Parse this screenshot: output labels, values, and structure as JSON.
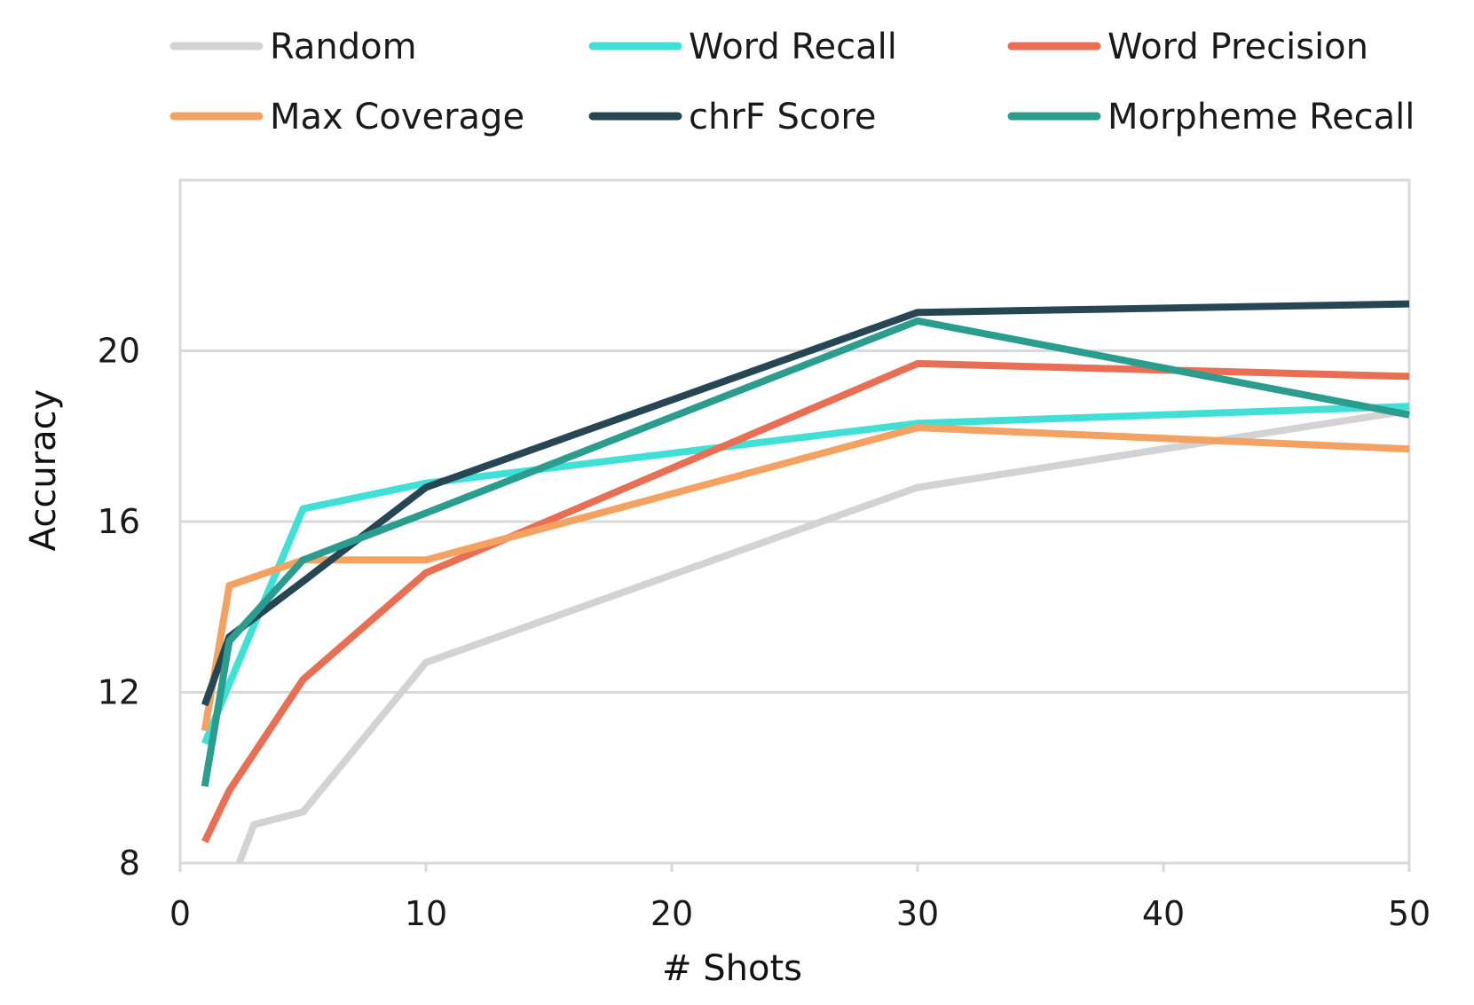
{
  "chart_data": {
    "type": "line",
    "title": "",
    "xlabel": "# Shots",
    "ylabel": "Accuracy",
    "xlim": [
      0,
      50
    ],
    "ylim": [
      8,
      24
    ],
    "x_ticks": [
      0,
      10,
      20,
      30,
      40,
      50
    ],
    "y_ticks": [
      8,
      12,
      16,
      20
    ],
    "grid": "horizontal",
    "legend_position": "top",
    "series": [
      {
        "name": "Random",
        "color": "#d3d3d3",
        "points": [
          [
            2.4,
            8.0
          ],
          [
            3,
            8.9
          ],
          [
            5,
            9.2
          ],
          [
            10,
            12.7
          ],
          [
            30,
            16.8
          ],
          [
            50,
            18.6
          ]
        ]
      },
      {
        "name": "Word Recall",
        "color": "#40e0d6",
        "points": [
          [
            1,
            10.8
          ],
          [
            2,
            12.2
          ],
          [
            5,
            16.3
          ],
          [
            10,
            16.9
          ],
          [
            30,
            18.3
          ],
          [
            50,
            18.7
          ]
        ]
      },
      {
        "name": "Word Precision",
        "color": "#e86f53",
        "points": [
          [
            1,
            8.5
          ],
          [
            2,
            9.7
          ],
          [
            5,
            12.3
          ],
          [
            10,
            14.8
          ],
          [
            30,
            19.7
          ],
          [
            50,
            19.4
          ]
        ]
      },
      {
        "name": "Max Coverage",
        "color": "#f4a261",
        "points": [
          [
            1,
            11.1
          ],
          [
            2,
            14.5
          ],
          [
            5,
            15.1
          ],
          [
            10,
            15.1
          ],
          [
            30,
            18.2
          ],
          [
            50,
            17.7
          ]
        ]
      },
      {
        "name": "chrF Score",
        "color": "#264653",
        "points": [
          [
            1,
            11.7
          ],
          [
            2,
            13.3
          ],
          [
            5,
            14.6
          ],
          [
            10,
            16.8
          ],
          [
            30,
            20.9
          ],
          [
            50,
            21.1
          ]
        ]
      },
      {
        "name": "Morpheme Recall",
        "color": "#2a9d8f",
        "points": [
          [
            1,
            9.8
          ],
          [
            2,
            13.2
          ],
          [
            5,
            15.1
          ],
          [
            10,
            16.2
          ],
          [
            30,
            20.7
          ],
          [
            50,
            18.5
          ]
        ]
      }
    ]
  }
}
